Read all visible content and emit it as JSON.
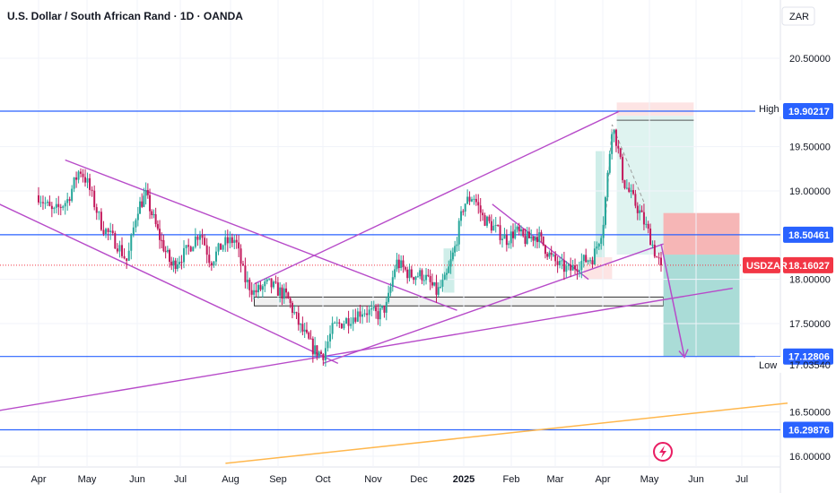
{
  "header": {
    "title": "U.S. Dollar / South African Rand · 1D · OANDA",
    "currency": "ZAR"
  },
  "colors": {
    "up": "#26a69a",
    "down": "#c2185b",
    "hline": "#2962ff",
    "channel": "#b74bc9",
    "orange": "#ffb74d",
    "price_tag": "#f23645"
  },
  "chart_data": {
    "type": "candlestick",
    "title": "U.S. Dollar / South African Rand · 1D · OANDA",
    "ylim": [
      15.9,
      20.95
    ],
    "y_ticks": [
      {
        "label": "20.50000",
        "value": 20.5
      },
      {
        "label": "19.50000",
        "value": 19.5
      },
      {
        "label": "19.00000",
        "value": 19.0
      },
      {
        "label": "18.00000",
        "value": 18.0
      },
      {
        "label": "17.50000",
        "value": 17.5
      },
      {
        "label": "16.50000",
        "value": 16.5
      },
      {
        "label": "16.00000",
        "value": 16.0
      }
    ],
    "x_ticks": [
      {
        "label": "Apr",
        "t": 0
      },
      {
        "label": "May",
        "t": 1
      },
      {
        "label": "Jun",
        "t": 2
      },
      {
        "label": "Jul",
        "t": 3
      },
      {
        "label": "Aug",
        "t": 4
      },
      {
        "label": "Sep",
        "t": 5
      },
      {
        "label": "Oct",
        "t": 6
      },
      {
        "label": "Nov",
        "t": 7
      },
      {
        "label": "Dec",
        "t": 8
      },
      {
        "label": "2025",
        "t": 9,
        "bold": true
      },
      {
        "label": "Feb",
        "t": 10
      },
      {
        "label": "Mar",
        "t": 11
      },
      {
        "label": "Apr",
        "t": 12
      },
      {
        "label": "May",
        "t": 13
      },
      {
        "label": "Jun",
        "t": 14
      },
      {
        "label": "Jul",
        "t": 15
      }
    ],
    "price_anchors": [
      [
        0.0,
        18.95
      ],
      [
        0.3,
        18.75
      ],
      [
        0.6,
        18.9
      ],
      [
        0.85,
        19.25
      ],
      [
        1.0,
        19.1
      ],
      [
        1.3,
        18.6
      ],
      [
        1.6,
        18.4
      ],
      [
        1.8,
        18.2
      ],
      [
        2.0,
        18.8
      ],
      [
        2.2,
        18.95
      ],
      [
        2.5,
        18.5
      ],
      [
        2.8,
        18.15
      ],
      [
        3.1,
        18.3
      ],
      [
        3.4,
        18.55
      ],
      [
        3.6,
        18.2
      ],
      [
        3.85,
        18.4
      ],
      [
        4.1,
        18.45
      ],
      [
        4.3,
        18.0
      ],
      [
        4.5,
        17.85
      ],
      [
        4.8,
        17.95
      ],
      [
        5.2,
        17.8
      ],
      [
        5.5,
        17.45
      ],
      [
        5.8,
        17.2
      ],
      [
        6.0,
        17.15
      ],
      [
        6.2,
        17.45
      ],
      [
        6.5,
        17.55
      ],
      [
        6.8,
        17.65
      ],
      [
        7.1,
        17.6
      ],
      [
        7.3,
        17.7
      ],
      [
        7.5,
        18.2
      ],
      [
        7.8,
        18.05
      ],
      [
        8.1,
        18.05
      ],
      [
        8.4,
        17.85
      ],
      [
        8.6,
        18.0
      ],
      [
        8.8,
        18.35
      ],
      [
        9.0,
        18.85
      ],
      [
        9.2,
        18.95
      ],
      [
        9.4,
        18.7
      ],
      [
        9.6,
        18.6
      ],
      [
        9.9,
        18.45
      ],
      [
        10.1,
        18.55
      ],
      [
        10.3,
        18.45
      ],
      [
        10.6,
        18.5
      ],
      [
        10.9,
        18.25
      ],
      [
        11.1,
        18.15
      ],
      [
        11.3,
        18.1
      ],
      [
        11.55,
        18.2
      ],
      [
        11.8,
        18.25
      ],
      [
        12.0,
        18.6
      ],
      [
        12.1,
        19.15
      ],
      [
        12.2,
        19.75
      ],
      [
        12.3,
        19.55
      ],
      [
        12.45,
        19.1
      ],
      [
        12.6,
        18.95
      ],
      [
        12.8,
        18.75
      ],
      [
        13.0,
        18.5
      ],
      [
        13.15,
        18.25
      ],
      [
        13.25,
        18.16
      ]
    ],
    "series": [
      {
        "name": "USDZAR",
        "last": 18.16027
      }
    ],
    "horizontal_levels": [
      19.90217,
      18.50461,
      17.12806,
      16.29876
    ],
    "price_labels": [
      {
        "name": "high",
        "label": "High",
        "value": "19.93383",
        "y": 19.93383
      },
      {
        "name": "level-1",
        "label": "",
        "value": "19.90217",
        "y": 19.90217,
        "tag": true
      },
      {
        "name": "level-2",
        "label": "",
        "value": "18.50461",
        "y": 18.50461,
        "tag": true
      },
      {
        "name": "current",
        "label": "USDZAR",
        "value": "18.16027",
        "y": 18.16027,
        "tag": true,
        "current": true
      },
      {
        "name": "level-3",
        "label": "",
        "value": "17.12806",
        "y": 17.12806,
        "tag": true
      },
      {
        "name": "low",
        "label": "Low",
        "value": "17.03540",
        "y": 17.0354
      },
      {
        "name": "level-4",
        "label": "",
        "value": "16.29876",
        "y": 16.29876,
        "tag": true
      }
    ],
    "trendlines": [
      {
        "name": "upper-downtrend",
        "from": [
          0.55,
          19.35
        ],
        "to": [
          8.85,
          17.65
        ]
      },
      {
        "name": "lower-downtrend",
        "from": [
          -1.0,
          18.9
        ],
        "to": [
          6.3,
          17.05
        ]
      },
      {
        "name": "channel-upper",
        "from": [
          4.5,
          17.95
        ],
        "to": [
          12.35,
          19.9
        ]
      },
      {
        "name": "channel-lower",
        "from": [
          6.0,
          17.05
        ],
        "to": [
          13.3,
          18.4
        ]
      },
      {
        "name": "long-support",
        "from": [
          -1.0,
          16.5
        ],
        "to": [
          14.8,
          17.9
        ]
      },
      {
        "name": "feb-downtrend",
        "from": [
          9.6,
          18.85
        ],
        "to": [
          11.7,
          18.0
        ]
      },
      {
        "name": "long-term-orange",
        "from": [
          3.9,
          15.92
        ],
        "to": [
          16.0,
          16.6
        ]
      }
    ],
    "zones": [
      {
        "name": "support-box",
        "t": [
          4.5,
          13.3
        ],
        "y": [
          17.7,
          17.8
        ],
        "fill": "#f0f0f0",
        "stroke": "#333333"
      },
      {
        "name": "short-profit-zone",
        "t": [
          12.3,
          13.95
        ],
        "y": [
          18.28,
          19.85
        ],
        "fill": "#dff3f0"
      },
      {
        "name": "short-stop-zone",
        "t": [
          12.3,
          13.95
        ],
        "y": [
          19.85,
          20.0
        ],
        "fill": "#fde4e4"
      },
      {
        "name": "target-zone",
        "t": [
          13.3,
          14.95
        ],
        "y": [
          17.13,
          18.28
        ],
        "fill": "#aadcd7"
      },
      {
        "name": "stop-zone",
        "t": [
          13.3,
          14.95
        ],
        "y": [
          18.28,
          18.75
        ],
        "fill": "#f6b6b6"
      },
      {
        "name": "entry-line",
        "t": [
          12.3,
          13.95
        ],
        "y": [
          19.8,
          19.8
        ],
        "fill": "none",
        "stroke": "#555555"
      }
    ]
  }
}
